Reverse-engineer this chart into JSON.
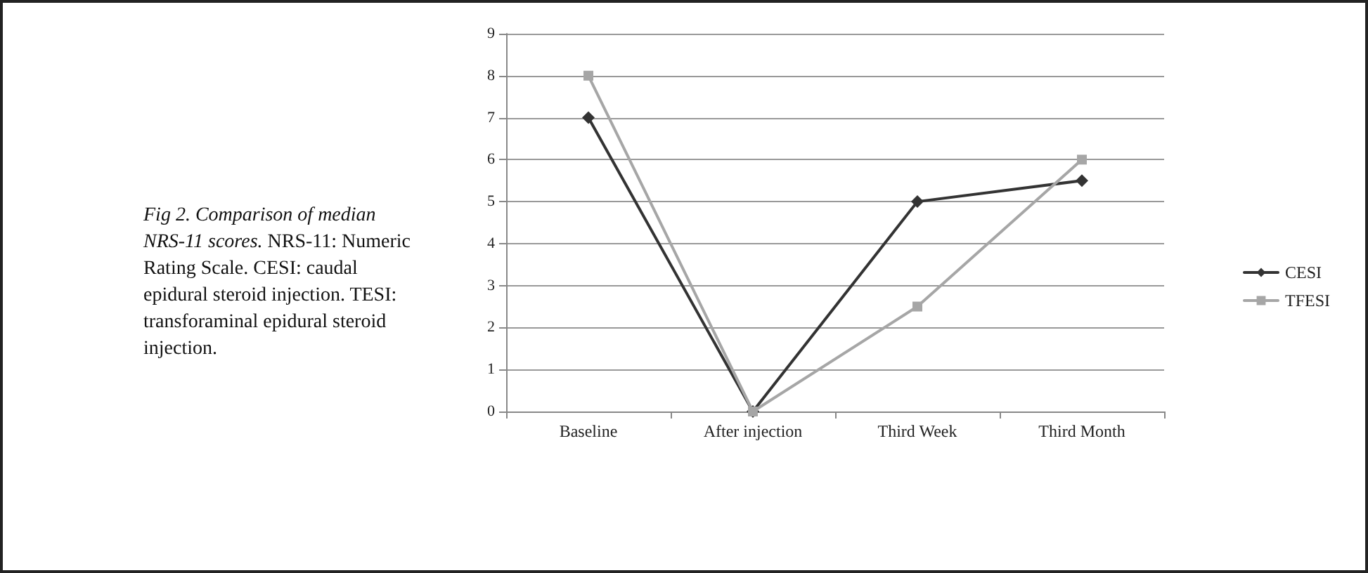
{
  "chart_data": {
    "type": "line",
    "title": "Fig 2. Comparison of median NRS-11 scores.",
    "annotations": [
      "NRS-11: Numeric Rating Scale. CESI: caudal epidural steroid injection. TESI: transforaminal epidural steroid injection."
    ],
    "categories": [
      "Baseline",
      "After injection",
      "Third Week",
      "Third Month"
    ],
    "series": [
      {
        "name": "CESI",
        "color": "#333333",
        "marker": "diamond",
        "values": [
          7,
          0,
          5,
          5.5
        ]
      },
      {
        "name": "TFESI",
        "color": "#a6a6a6",
        "marker": "square",
        "values": [
          8,
          0,
          2.5,
          6
        ]
      }
    ],
    "ylim": [
      0,
      9
    ],
    "yticks": [
      0,
      1,
      2,
      3,
      4,
      5,
      6,
      7,
      8,
      9
    ],
    "grid": "y",
    "legend": "right",
    "line_style": "solid"
  }
}
